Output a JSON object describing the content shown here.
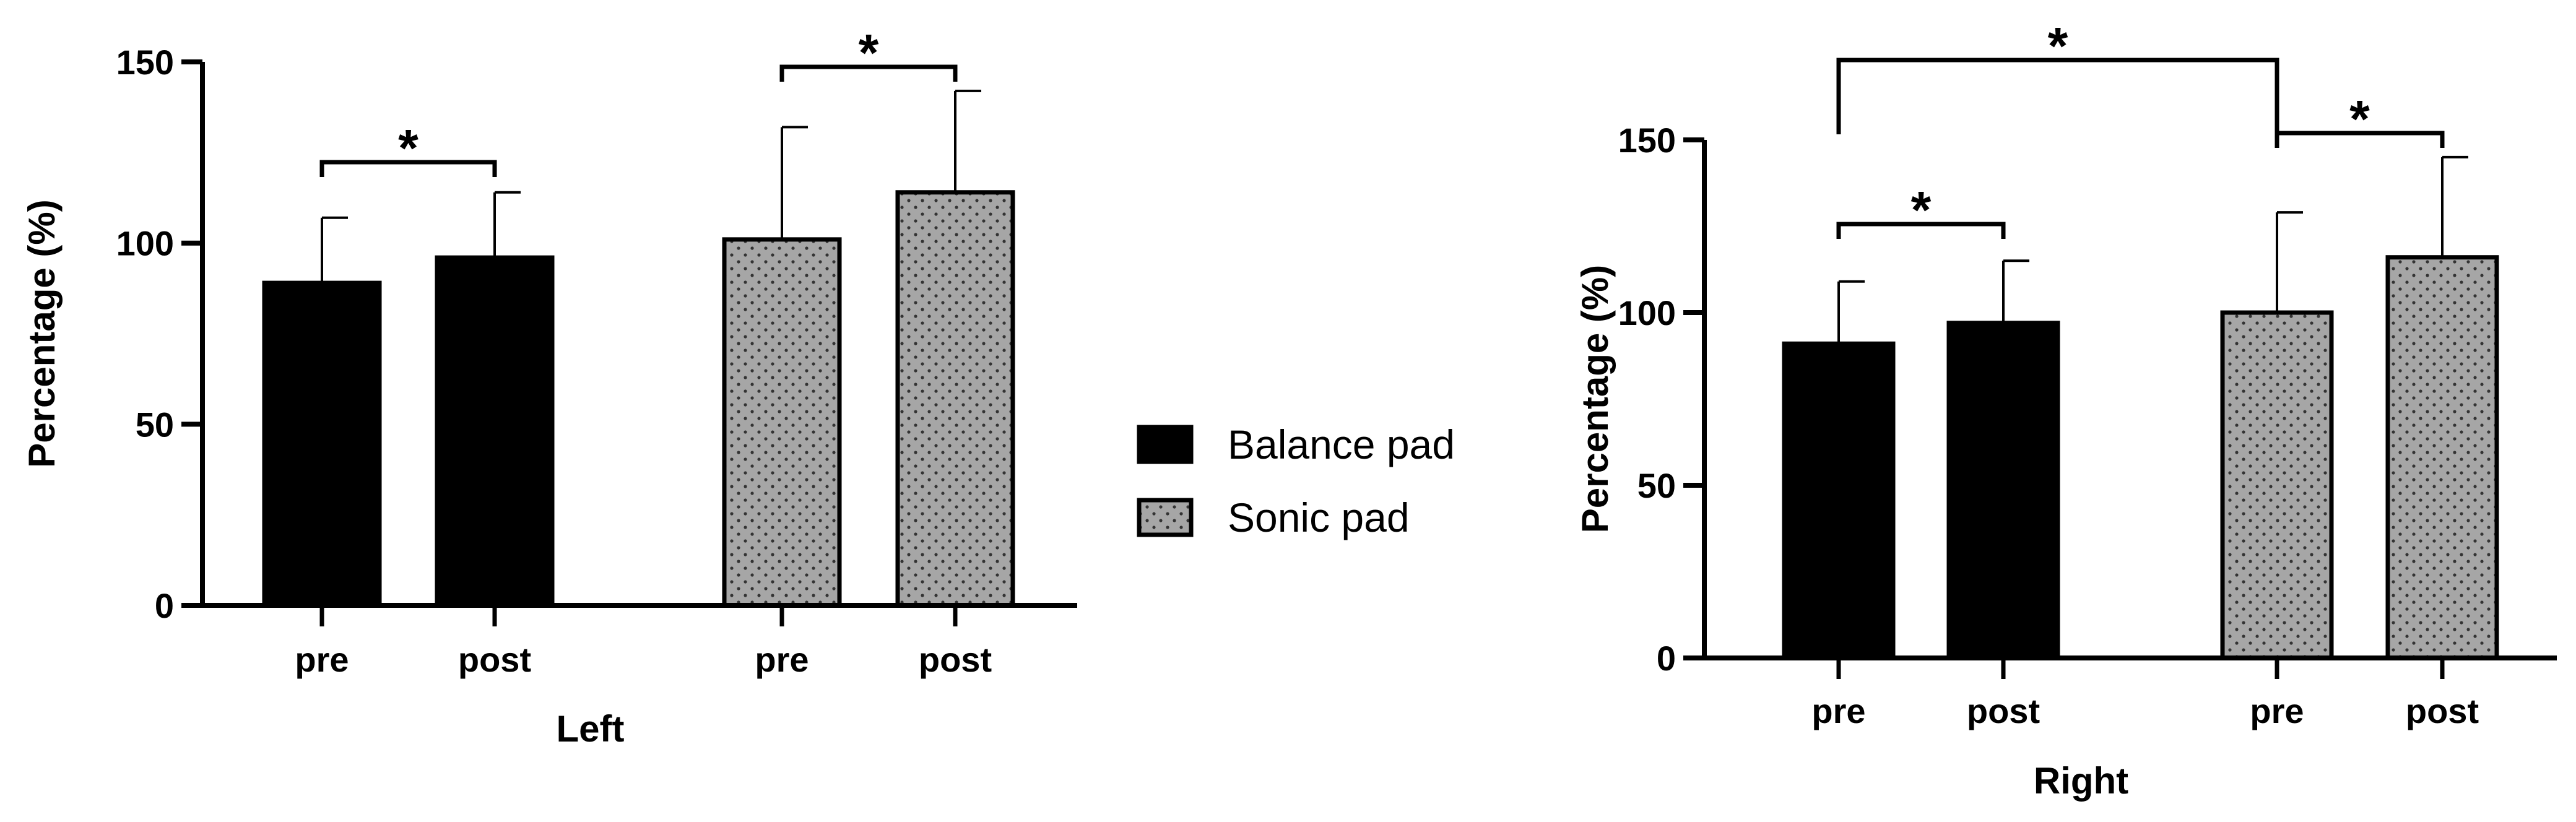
{
  "colors": {
    "balance_pad": "#000000",
    "sonic_pad_fill": "#a6a6a6",
    "sonic_pad_dots": "#333333",
    "axis": "#000000",
    "background": "#ffffff"
  },
  "legend": {
    "items": [
      {
        "label": "Balance pad",
        "swatch": "solid-black"
      },
      {
        "label": "Sonic pad",
        "swatch": "dotted-gray"
      }
    ]
  },
  "chart_data": [
    {
      "type": "bar",
      "xlabel": "Left",
      "ylabel": "Percentage (%)",
      "ylim": [
        0,
        150
      ],
      "yticks": [
        0,
        50,
        100,
        150
      ],
      "grid": false,
      "categories": [
        "pre",
        "post",
        "pre",
        "post"
      ],
      "bars": [
        {
          "category": "pre",
          "group": "Balance pad",
          "value": 89,
          "error": 18
        },
        {
          "category": "post",
          "group": "Balance pad",
          "value": 96,
          "error": 18
        },
        {
          "category": "pre",
          "group": "Sonic pad",
          "value": 101,
          "error": 31
        },
        {
          "category": "post",
          "group": "Sonic pad",
          "value": 114,
          "error": 28
        }
      ],
      "significance": [
        {
          "from": 0,
          "to": 1,
          "label": "*"
        },
        {
          "from": 2,
          "to": 3,
          "label": "*"
        }
      ]
    },
    {
      "type": "bar",
      "xlabel": "Right",
      "ylabel": "Percentage (%)",
      "ylim": [
        0,
        150
      ],
      "yticks": [
        0,
        50,
        100,
        150
      ],
      "grid": false,
      "categories": [
        "pre",
        "post",
        "pre",
        "post"
      ],
      "bars": [
        {
          "category": "pre",
          "group": "Balance pad",
          "value": 91,
          "error": 18
        },
        {
          "category": "post",
          "group": "Balance pad",
          "value": 97,
          "error": 18
        },
        {
          "category": "pre",
          "group": "Sonic pad",
          "value": 100,
          "error": 29
        },
        {
          "category": "post",
          "group": "Sonic pad",
          "value": 116,
          "error": 29
        }
      ],
      "significance": [
        {
          "from": 0,
          "to": 1,
          "label": "*"
        },
        {
          "from": 2,
          "to": 3,
          "label": "*"
        },
        {
          "from": 0,
          "to": 2,
          "label": "*"
        }
      ]
    }
  ]
}
